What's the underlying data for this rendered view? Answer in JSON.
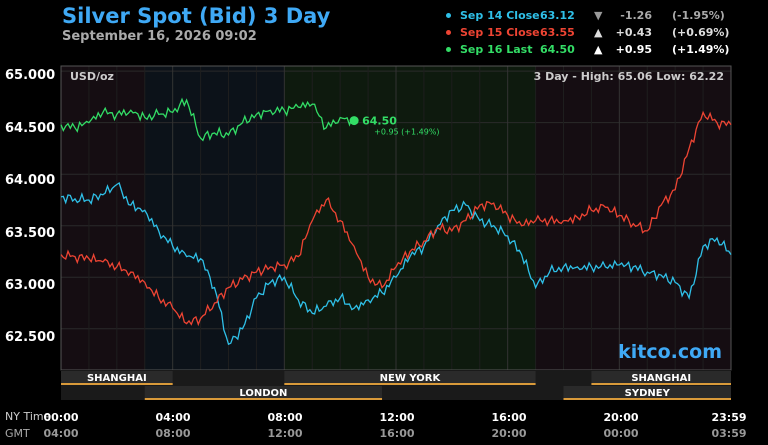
{
  "header": {
    "title": "Silver Spot (Bid) 3 Day",
    "subtitle": "September 16, 2026 09:02"
  },
  "legend": [
    {
      "name": "Sep 14 Close",
      "value": "63.12",
      "arrow": "▼",
      "change": "-1.26",
      "pct": "(-1.95%)",
      "color": "#2fc0e8"
    },
    {
      "name": "Sep 15 Close",
      "value": "63.55",
      "arrow": "▲",
      "change": "+0.43",
      "pct": "(+0.69%)",
      "color": "#ee4433"
    },
    {
      "name": "Sep 16 Last",
      "value": "64.50",
      "arrow": "▲",
      "change": "+0.95",
      "pct": "(+1.49%)",
      "color": "#33dd66"
    }
  ],
  "plot": {
    "unit": "USD/oz",
    "range_text": "3 Day - High: 65.06  Low: 62.22",
    "watermark": "kitco.com",
    "current_label": "64.50",
    "current_change": "+0.95 (+1.49%)"
  },
  "sessions": {
    "shanghai": "SHANGHAI",
    "london": "LONDON",
    "new_york": "NEW YORK",
    "shanghai2": "SHANGHAI",
    "sydney": "SYDNEY"
  },
  "axis": {
    "ny_label": "NY Time",
    "gmt_label": "GMT",
    "ny_times": [
      "00:00",
      "04:00",
      "08:00",
      "12:00",
      "16:00",
      "20:00",
      "23:59"
    ],
    "gmt_times": [
      "04:00",
      "08:00",
      "12:00",
      "16:00",
      "20:00",
      "00:00",
      "03:59"
    ]
  },
  "chart_data": {
    "type": "line",
    "title": "Silver Spot (Bid) 3 Day",
    "ylabel": "USD/oz",
    "ylim": [
      62.1,
      65.05
    ],
    "yticks": [
      "65.000",
      "64.500",
      "64.000",
      "63.500",
      "63.000",
      "62.500"
    ],
    "x_hours": [
      0,
      0.5,
      1,
      1.5,
      2,
      2.5,
      3,
      3.5,
      4,
      4.5,
      5,
      5.5,
      6,
      6.5,
      7,
      7.5,
      8,
      8.5,
      9,
      9.5,
      10,
      10.5,
      11,
      11.5,
      12,
      12.5,
      13,
      13.5,
      14,
      14.5,
      15,
      15.5,
      16,
      16.5,
      17,
      17.5,
      18,
      18.5,
      19,
      19.5,
      20,
      20.5,
      21,
      21.5,
      22,
      22.5,
      23,
      23.5,
      24
    ],
    "series": [
      {
        "name": "Sep 14 Close",
        "color": "#2fc0e8",
        "values": [
          63.78,
          63.76,
          63.75,
          63.8,
          63.9,
          63.7,
          63.65,
          63.45,
          63.3,
          63.2,
          63.18,
          62.9,
          62.35,
          62.5,
          62.8,
          62.95,
          63.0,
          62.78,
          62.65,
          62.72,
          62.8,
          62.7,
          62.78,
          62.85,
          63.0,
          63.2,
          63.3,
          63.5,
          63.65,
          63.7,
          63.55,
          63.5,
          63.4,
          63.22,
          62.9,
          63.05,
          63.1,
          63.1,
          63.1,
          63.1,
          63.12,
          63.1,
          63.05,
          63.02,
          62.95,
          62.8,
          63.3,
          63.38,
          63.22
        ]
      },
      {
        "name": "Sep 15 Close",
        "color": "#ee4433",
        "values": [
          63.22,
          63.2,
          63.18,
          63.15,
          63.1,
          63.05,
          62.95,
          62.8,
          62.7,
          62.55,
          62.6,
          62.75,
          62.9,
          62.98,
          63.05,
          63.1,
          63.12,
          63.2,
          63.55,
          63.75,
          63.55,
          63.3,
          63.0,
          62.9,
          63.1,
          63.25,
          63.35,
          63.48,
          63.45,
          63.55,
          63.7,
          63.72,
          63.6,
          63.5,
          63.55,
          63.55,
          63.55,
          63.58,
          63.65,
          63.68,
          63.6,
          63.52,
          63.45,
          63.7,
          63.85,
          64.25,
          64.6,
          64.5,
          64.48
        ]
      },
      {
        "name": "Sep 16 Last",
        "color": "#33dd66",
        "values": [
          64.48,
          64.45,
          64.5,
          64.6,
          64.58,
          64.62,
          64.55,
          64.58,
          64.6,
          64.72,
          64.35,
          64.4,
          64.38,
          64.5,
          64.58,
          64.62,
          64.62,
          64.65,
          64.68,
          64.45,
          64.55,
          64.52
        ]
      }
    ]
  }
}
